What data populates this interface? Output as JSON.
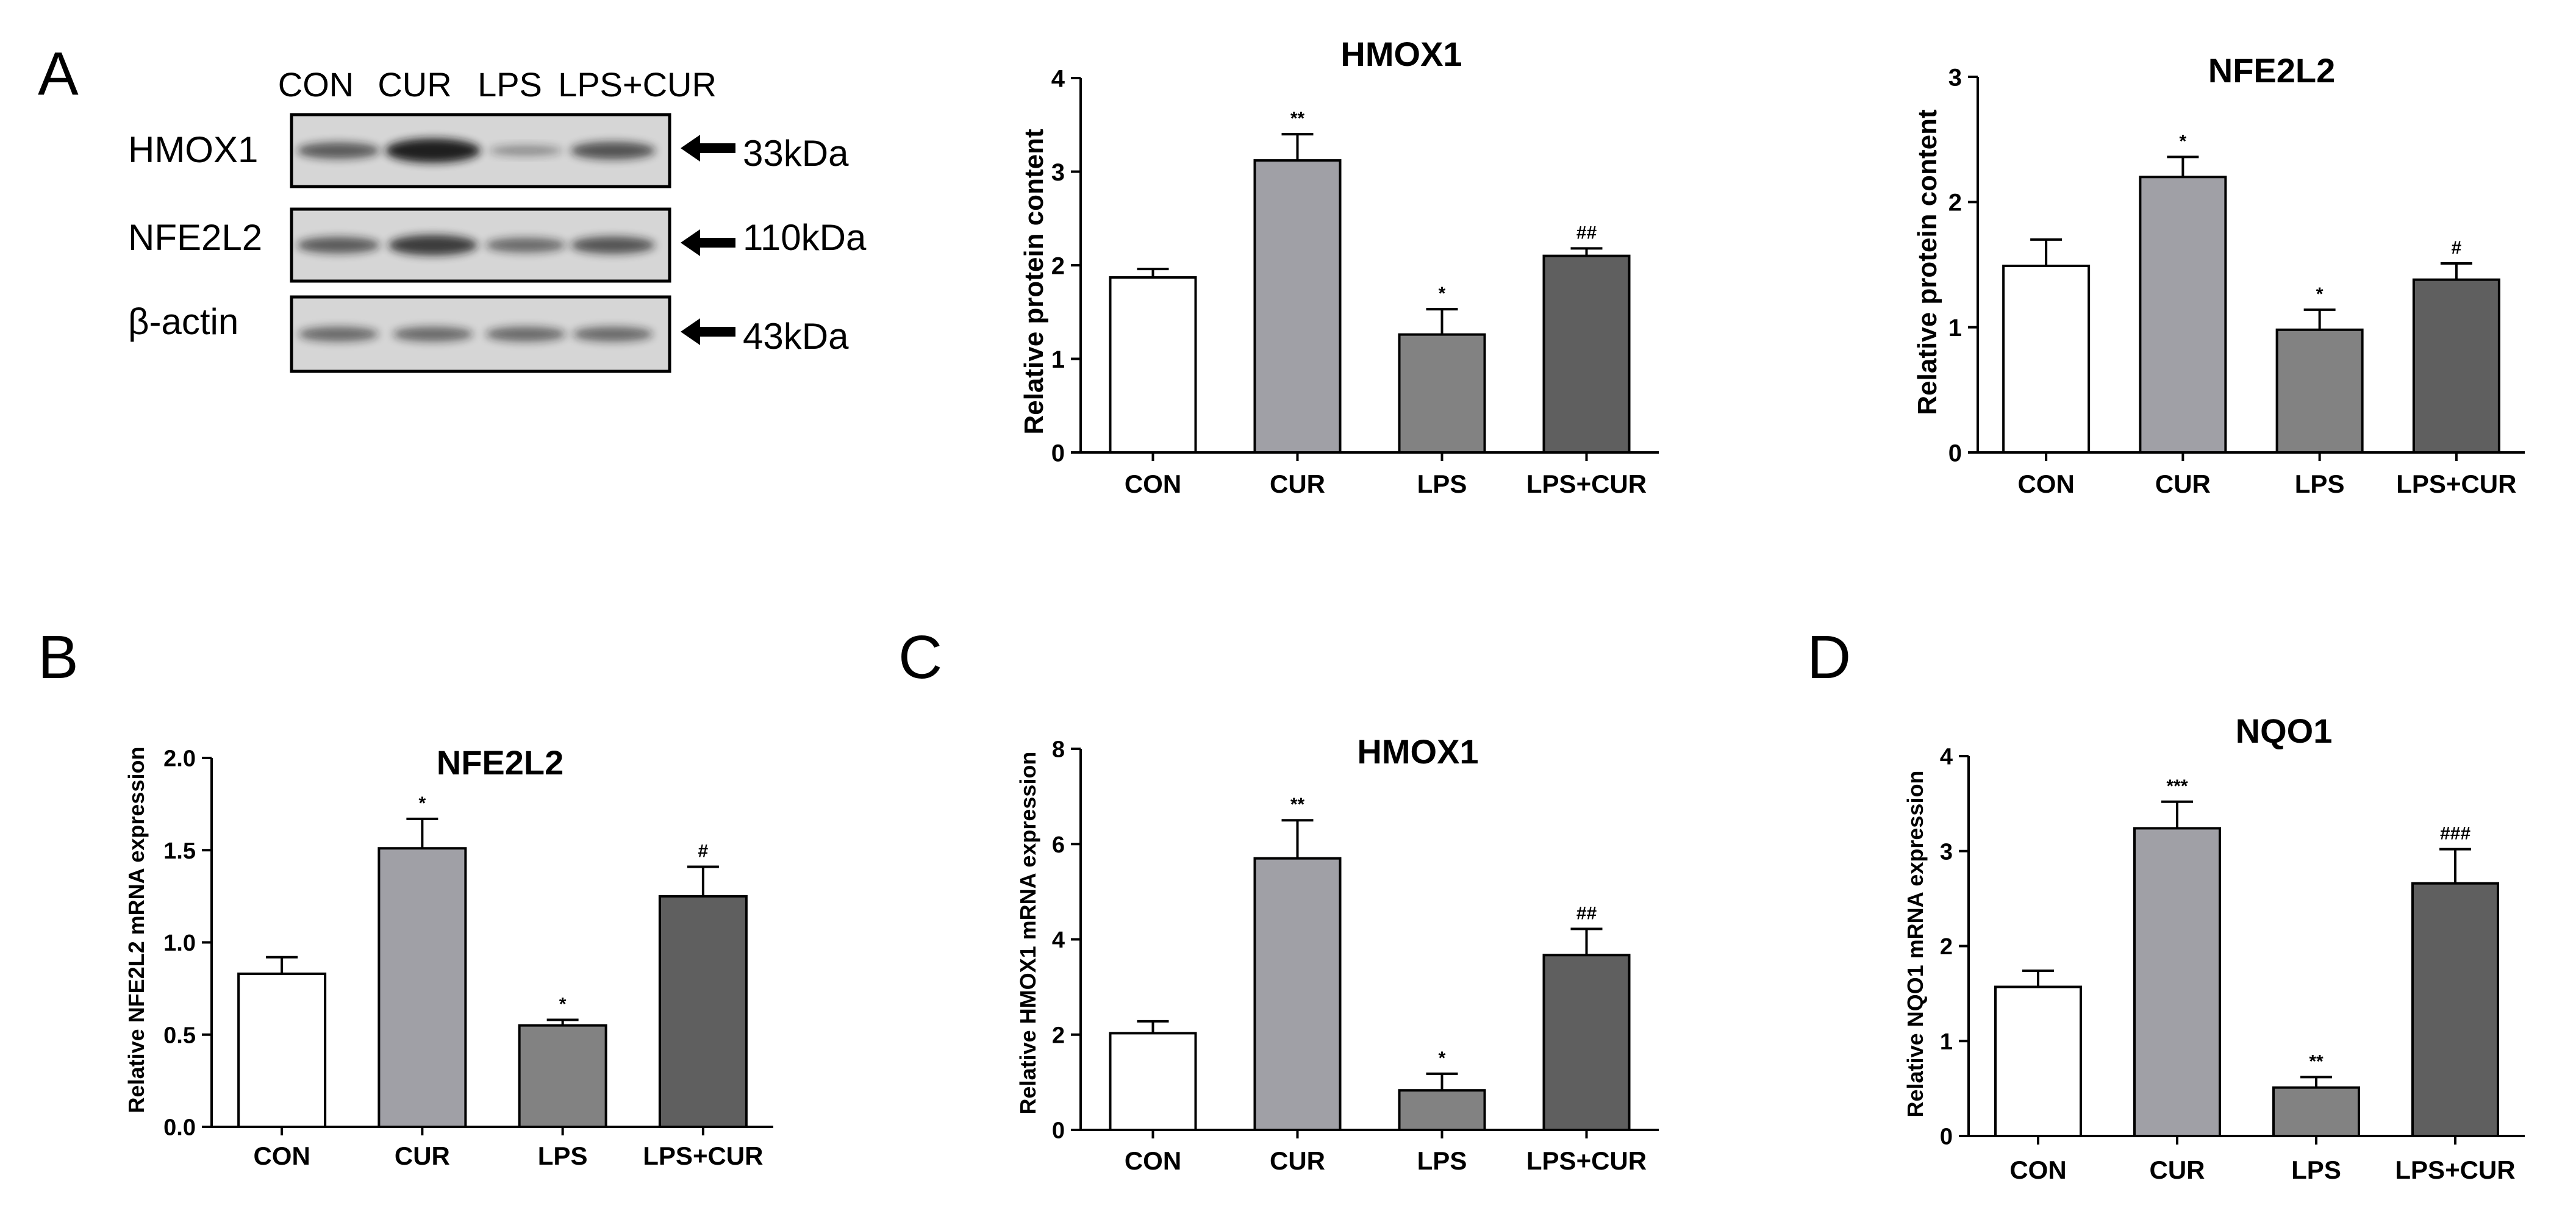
{
  "figure": {
    "panel_labels": [
      "A",
      "B",
      "C",
      "D"
    ]
  },
  "western_blot": {
    "lanes": [
      "CON",
      "CUR",
      "LPS",
      "LPS+CUR"
    ],
    "rows": [
      {
        "protein": "HMOX1",
        "size": "33kDa",
        "band_intensity": [
          0.55,
          1.0,
          0.18,
          0.62
        ]
      },
      {
        "protein": "NFE2L2",
        "size": "110kDa",
        "band_intensity": [
          0.55,
          0.78,
          0.45,
          0.6
        ]
      },
      {
        "protein": "β-actin",
        "size": "43kDa",
        "band_intensity": [
          0.45,
          0.45,
          0.45,
          0.45
        ]
      }
    ],
    "colors": {
      "background": "#d6d6d6",
      "band": "#141414",
      "frame": "#000000"
    }
  },
  "chart_data": [
    {
      "id": "a-hmox1",
      "panel": "A",
      "type": "bar",
      "title": "HMOX1",
      "xlabel": "",
      "ylabel": "Relative protein content",
      "categories": [
        "CON",
        "CUR",
        "LPS",
        "LPS+CUR"
      ],
      "values": [
        1.87,
        3.12,
        1.26,
        2.1
      ],
      "errors": [
        0.09,
        0.28,
        0.27,
        0.08
      ],
      "annotations": [
        "",
        "**",
        "*",
        "##"
      ],
      "ylim": [
        0,
        4
      ],
      "yticks": [
        0,
        1,
        2,
        3,
        4
      ],
      "yticklabels": [
        "0",
        "1",
        "2",
        "3",
        "4"
      ],
      "colors": [
        "#ffffff",
        "#a0a0a6",
        "#828282",
        "#5f5f5f"
      ]
    },
    {
      "id": "a-nfe2l2",
      "panel": "A",
      "type": "bar",
      "title": "NFE2L2",
      "xlabel": "",
      "ylabel": "Relative protein content",
      "categories": [
        "CON",
        "CUR",
        "LPS",
        "LPS+CUR"
      ],
      "values": [
        1.49,
        2.2,
        0.98,
        1.38
      ],
      "errors": [
        0.21,
        0.16,
        0.16,
        0.13
      ],
      "annotations": [
        "",
        "*",
        "*",
        "#"
      ],
      "ylim": [
        0,
        3
      ],
      "yticks": [
        0,
        1,
        2,
        3
      ],
      "yticklabels": [
        "0",
        "1",
        "2",
        "3"
      ],
      "colors": [
        "#ffffff",
        "#a0a0a6",
        "#828282",
        "#5f5f5f"
      ]
    },
    {
      "id": "b-nfe2l2",
      "panel": "B",
      "type": "bar",
      "title": "NFE2L2",
      "xlabel": "",
      "ylabel": "Relative NFE2L2 mRNA expression",
      "categories": [
        "CON",
        "CUR",
        "LPS",
        "LPS+CUR"
      ],
      "values": [
        0.83,
        1.51,
        0.55,
        1.25
      ],
      "errors": [
        0.09,
        0.16,
        0.03,
        0.16
      ],
      "annotations": [
        "",
        "*",
        "*",
        "#"
      ],
      "ylim": [
        0,
        2
      ],
      "yticks": [
        0,
        0.5,
        1,
        1.5,
        2
      ],
      "yticklabels": [
        "0.0",
        "0.5",
        "1.0",
        "1.5",
        "2.0"
      ],
      "colors": [
        "#ffffff",
        "#a0a0a6",
        "#828282",
        "#5f5f5f"
      ]
    },
    {
      "id": "c-hmox1",
      "panel": "C",
      "type": "bar",
      "title": "HMOX1",
      "xlabel": "",
      "ylabel": "Relative HMOX1 mRNA expression",
      "categories": [
        "CON",
        "CUR",
        "LPS",
        "LPS+CUR"
      ],
      "values": [
        2.03,
        5.7,
        0.83,
        3.67
      ],
      "errors": [
        0.25,
        0.8,
        0.35,
        0.55
      ],
      "annotations": [
        "",
        "**",
        "*",
        "##"
      ],
      "ylim": [
        0,
        8
      ],
      "yticks": [
        0,
        2,
        4,
        6,
        8
      ],
      "yticklabels": [
        "0",
        "2",
        "4",
        "6",
        "8"
      ],
      "colors": [
        "#ffffff",
        "#a0a0a6",
        "#828282",
        "#5f5f5f"
      ]
    },
    {
      "id": "d-nqo1",
      "panel": "D",
      "type": "bar",
      "title": "NQO1",
      "xlabel": "",
      "ylabel": "Relative NQO1 mRNA expression",
      "categories": [
        "CON",
        "CUR",
        "LPS",
        "LPS+CUR"
      ],
      "values": [
        1.57,
        3.24,
        0.51,
        2.66
      ],
      "errors": [
        0.17,
        0.28,
        0.11,
        0.36
      ],
      "annotations": [
        "",
        "***",
        "**",
        "###"
      ],
      "ylim": [
        0,
        4
      ],
      "yticks": [
        0,
        1,
        2,
        3,
        4
      ],
      "yticklabels": [
        "0",
        "1",
        "2",
        "3",
        "4"
      ],
      "colors": [
        "#ffffff",
        "#a0a0a6",
        "#828282",
        "#5f5f5f"
      ]
    }
  ]
}
